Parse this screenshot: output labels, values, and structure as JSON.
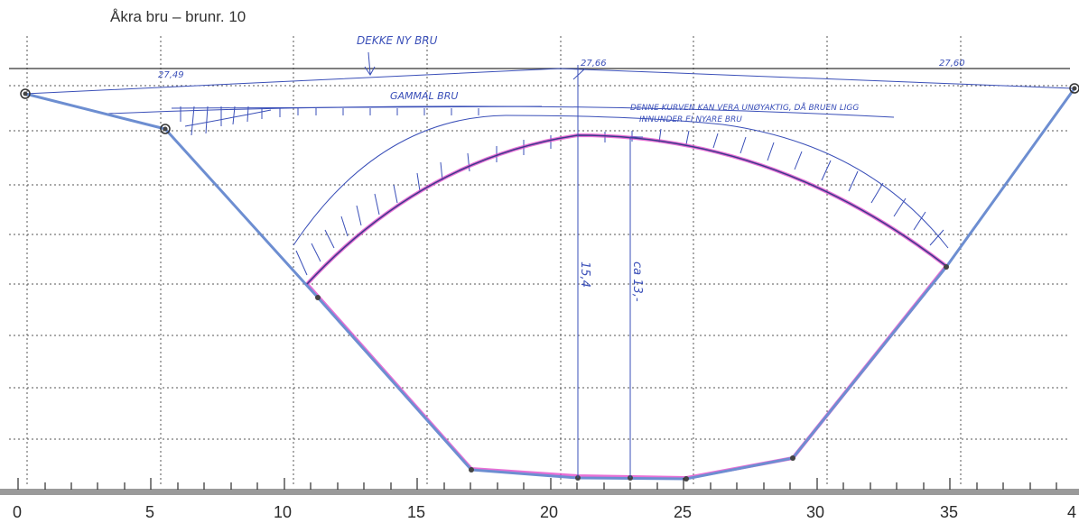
{
  "title": "Åkra bru – brunr. 10",
  "annotations": {
    "new_deck": "DEKKE NY BRU",
    "old_bridge": "GAMMAL BRU",
    "curve_note_1": "DENNE KURVEN KAN VERA UNØYAKTIG, DÅ BRUEN LIGG",
    "curve_note_2": "INNUNDER EI NYARE BRU",
    "height_1": "15,4",
    "height_2": "ca 13,-"
  },
  "elevations": {
    "left": "27,49",
    "middle": "27,66",
    "right": "27,60"
  },
  "axis": {
    "ticks": [
      "0",
      "5",
      "10",
      "15",
      "20",
      "25",
      "30",
      "35",
      "4"
    ]
  },
  "colors": {
    "profile": "#6d8ed1",
    "pen": "#3a4fb8",
    "highlight": "#e040c8",
    "grid": "#555555"
  }
}
